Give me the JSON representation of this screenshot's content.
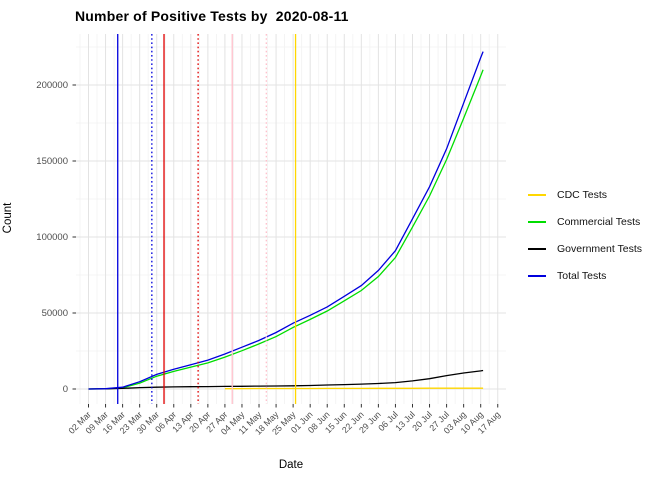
{
  "title": "Number of Positive Tests by  2020-08-11",
  "x_axis": {
    "label": "Date",
    "tick_labels": [
      "02 Mar",
      "09 Mar",
      "16 Mar",
      "23 Mar",
      "30 Mar",
      "06 Apr",
      "13 Apr",
      "20 Apr",
      "27 Apr",
      "04 May",
      "11 May",
      "18 May",
      "25 May",
      "01 Jun",
      "08 Jun",
      "15 Jun",
      "22 Jun",
      "29 Jun",
      "06 Jul",
      "13 Jul",
      "20 Jul",
      "27 Jul",
      "03 Aug",
      "10 Aug",
      "17 Aug"
    ]
  },
  "y_axis": {
    "label": "Count",
    "tick_labels": [
      "0",
      "50000",
      "100000",
      "150000",
      "200000"
    ]
  },
  "legend": [
    {
      "label": "CDC Tests",
      "color": "#FFD700"
    },
    {
      "label": "Commercial Tests",
      "color": "#00DD00"
    },
    {
      "label": "Government Tests",
      "color": "#000000"
    },
    {
      "label": "Total Tests",
      "color": "#0000DD"
    }
  ],
  "chart_data": {
    "type": "line",
    "title": "Number of Positive Tests by  2020-08-11",
    "xlabel": "Date",
    "ylabel": "Count",
    "ylim": [
      0,
      232000
    ],
    "x_range": [
      "2020-02-26",
      "2020-08-20"
    ],
    "grid": true,
    "legend_position": "right",
    "x": [
      "2020-03-02",
      "2020-03-09",
      "2020-03-16",
      "2020-03-23",
      "2020-03-30",
      "2020-04-06",
      "2020-04-13",
      "2020-04-20",
      "2020-04-27",
      "2020-05-04",
      "2020-05-11",
      "2020-05-18",
      "2020-05-25",
      "2020-06-01",
      "2020-06-08",
      "2020-06-15",
      "2020-06-22",
      "2020-06-29",
      "2020-07-06",
      "2020-07-13",
      "2020-07-20",
      "2020-07-27",
      "2020-08-03",
      "2020-08-10",
      "2020-08-11"
    ],
    "series": [
      {
        "name": "CDC Tests",
        "color": "#FFD700",
        "values": [
          null,
          null,
          null,
          null,
          null,
          null,
          null,
          null,
          200,
          250,
          300,
          300,
          350,
          350,
          400,
          400,
          400,
          450,
          450,
          450,
          500,
          500,
          500,
          500,
          500
        ]
      },
      {
        "name": "Commercial Tests",
        "color": "#00DD00",
        "values": [
          0,
          100,
          800,
          3900,
          8400,
          11600,
          14400,
          17200,
          21000,
          25200,
          29700,
          34500,
          40500,
          45800,
          51300,
          58000,
          64800,
          74000,
          86500,
          106500,
          127000,
          151000,
          178000,
          206000,
          210000
        ]
      },
      {
        "name": "Government Tests",
        "color": "#000000",
        "values": [
          0,
          100,
          400,
          900,
          1200,
          1400,
          1500,
          1600,
          1700,
          1800,
          1900,
          2000,
          2100,
          2300,
          2600,
          2900,
          3200,
          3600,
          4200,
          5300,
          6800,
          8800,
          10500,
          11900,
          12200
        ]
      },
      {
        "name": "Total Tests",
        "color": "#0000DD",
        "values": [
          0,
          200,
          1200,
          4800,
          9600,
          13000,
          16000,
          19000,
          23000,
          27500,
          32000,
          37200,
          43300,
          48500,
          54000,
          61000,
          68000,
          78000,
          91000,
          112000,
          133000,
          158000,
          188000,
          218000,
          222000
        ]
      }
    ],
    "vertical_lines": [
      {
        "date": "2020-03-14",
        "color": "#0000DD",
        "style": "solid"
      },
      {
        "date": "2020-03-28",
        "color": "#0000DD",
        "style": "dotted"
      },
      {
        "date": "2020-04-02",
        "color": "#E00000",
        "style": "solid"
      },
      {
        "date": "2020-04-16",
        "color": "#E00000",
        "style": "dotted"
      },
      {
        "date": "2020-04-30",
        "color": "#FFC0CB",
        "style": "solid"
      },
      {
        "date": "2020-05-14",
        "color": "#FFC0CB",
        "style": "dotted"
      },
      {
        "date": "2020-05-26",
        "color": "#FFD700",
        "style": "solid"
      }
    ]
  }
}
